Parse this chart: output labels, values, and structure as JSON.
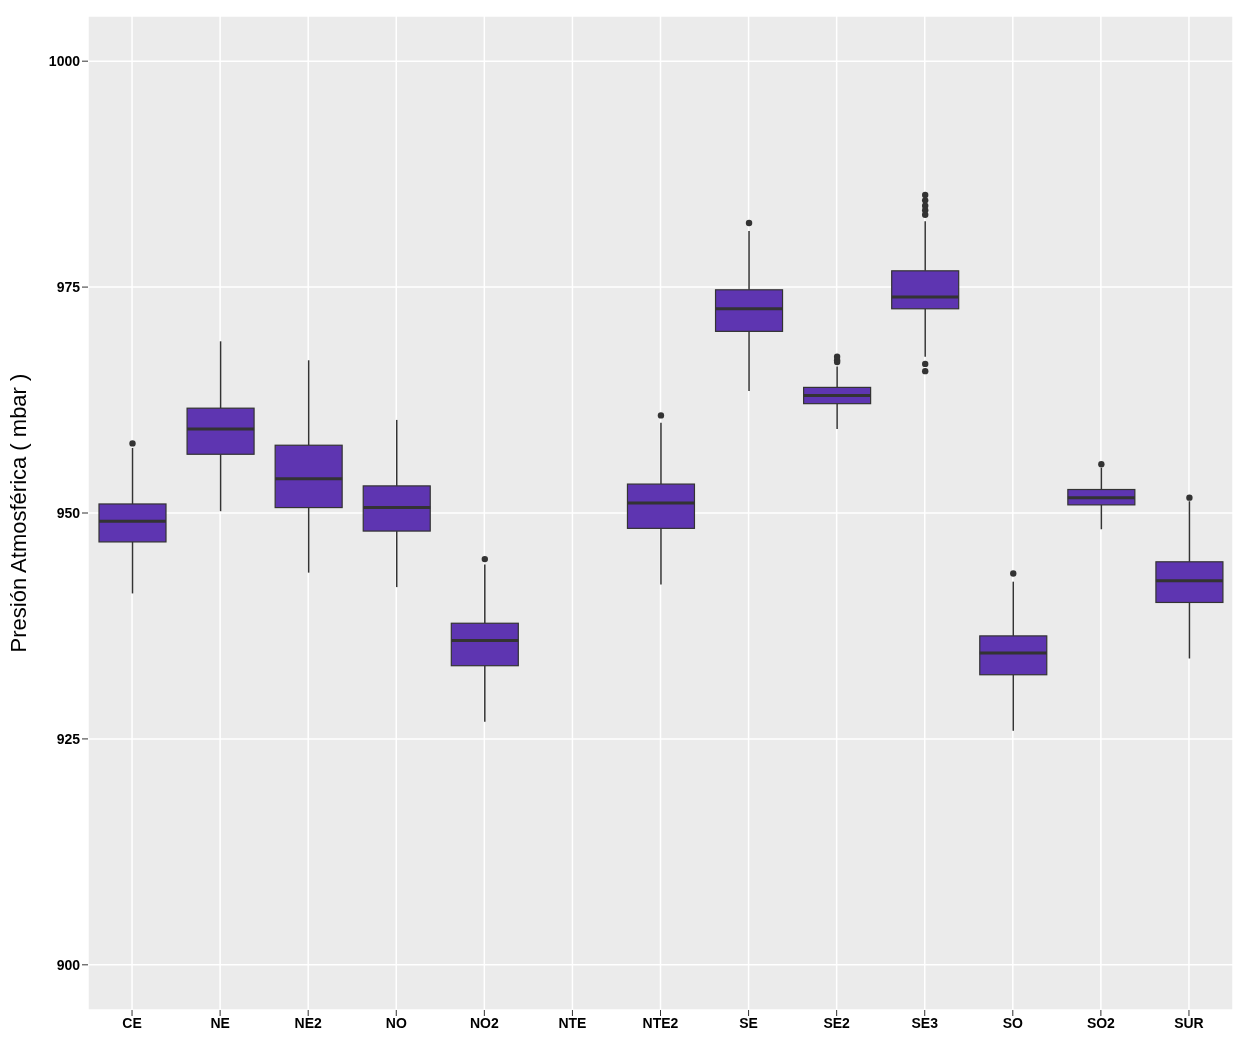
{
  "chart_data": {
    "type": "box",
    "ylabel": "Presión Atmosférica ( mbar )",
    "categories": [
      "CE",
      "NE",
      "NE2",
      "NO",
      "NO2",
      "NTE",
      "NTE2",
      "SE",
      "SE2",
      "SE3",
      "SO",
      "SO2",
      "SUR"
    ],
    "color": "#5e35b1",
    "ylim": [
      895,
      1005
    ],
    "yticks": [
      900,
      925,
      950,
      975,
      1000
    ],
    "grid": true,
    "boxes": [
      {
        "low": 941.1,
        "q1": 946.8,
        "median": 949.1,
        "q3": 951.0,
        "high": 957.2,
        "outliers": [
          957.7
        ]
      },
      {
        "low": 950.2,
        "q1": 956.5,
        "median": 959.3,
        "q3": 961.6,
        "high": 969.0
      },
      {
        "low": 943.4,
        "q1": 950.6,
        "median": 953.8,
        "q3": 957.5,
        "high": 966.9
      },
      {
        "low": 941.8,
        "q1": 948.0,
        "median": 950.6,
        "q3": 953.0,
        "high": 960.3
      },
      {
        "low": 926.9,
        "q1": 933.1,
        "median": 935.9,
        "q3": 937.8,
        "high": 944.3,
        "outliers": [
          944.9
        ]
      },
      null,
      {
        "low": 942.1,
        "q1": 948.3,
        "median": 951.1,
        "q3": 953.2,
        "high": 960.0,
        "outliers": [
          960.8
        ]
      },
      {
        "low": 963.5,
        "q1": 970.1,
        "median": 972.6,
        "q3": 974.7,
        "high": 981.2,
        "outliers": [
          982.1
        ]
      },
      {
        "low": 959.3,
        "q1": 962.1,
        "median": 963.0,
        "q3": 963.9,
        "high": 966.2,
        "outliers": [
          966.7,
          966.9,
          967.3
        ]
      },
      {
        "low": 967.3,
        "q1": 972.6,
        "median": 973.9,
        "q3": 976.8,
        "high": 982.3,
        "outliers": [
          983.0,
          983.5,
          984.0,
          984.6,
          985.2,
          966.5,
          965.7
        ]
      },
      {
        "low": 925.9,
        "q1": 932.1,
        "median": 934.5,
        "q3": 936.4,
        "high": 942.4,
        "outliers": [
          943.3
        ]
      },
      {
        "low": 948.2,
        "q1": 950.9,
        "median": 951.7,
        "q3": 952.6,
        "high": 955.0,
        "outliers": [
          955.4
        ]
      },
      {
        "low": 933.9,
        "q1": 940.1,
        "median": 942.5,
        "q3": 944.6,
        "high": 951.3,
        "outliers": [
          951.7
        ]
      }
    ]
  }
}
